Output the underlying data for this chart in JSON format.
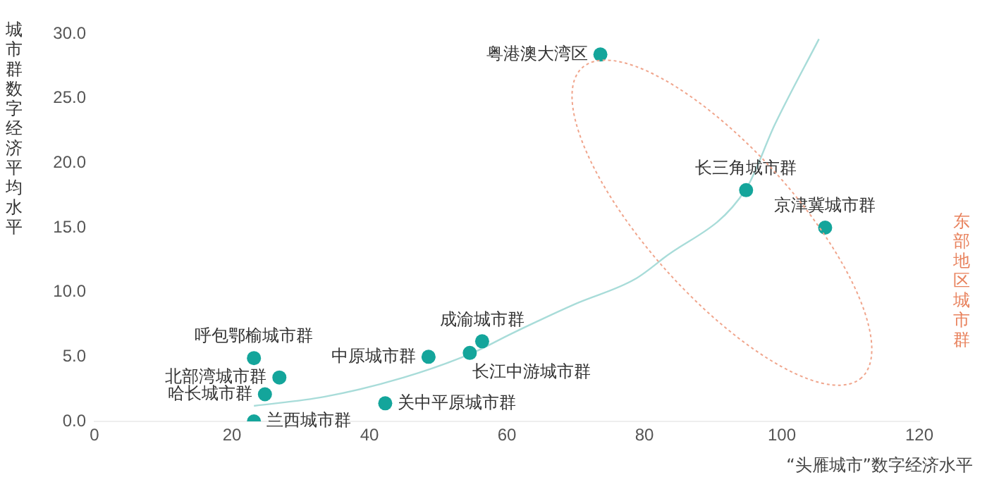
{
  "chart_data": {
    "type": "scatter",
    "xlabel": "“头雁城市”数字经济水平",
    "ylabel": "城市群数字经济平均水平",
    "series": [
      {
        "color": "#14a59b",
        "x": [
          73.6,
          94.8,
          106.3,
          23.2,
          26.9,
          24.8,
          23.2,
          42.3,
          48.6,
          54.6,
          56.4
        ],
        "values": [
          28.4,
          17.9,
          15.0,
          4.9,
          3.4,
          2.1,
          0.0,
          1.4,
          5.0,
          5.3,
          6.2
        ],
        "marker": "circle"
      },
      {
        "type": "line",
        "color": "#a8dcd9",
        "x": [
          23.2,
          33.4,
          45,
          55,
          60.7,
          70,
          78.6,
          82.7,
          94.8,
          99,
          105.4
        ],
        "values": [
          1.2,
          1.9,
          3.4,
          5.3,
          6.8,
          9.1,
          11.0,
          12.6,
          18.0,
          23.0,
          29.6
        ],
        "marker": "none"
      }
    ],
    "annotations": [
      {
        "text": "粤港澳大湾区",
        "x": 73.6,
        "y": 28.4
      },
      {
        "text": "长三角城市群",
        "x": 94.8,
        "y": 17.9
      },
      {
        "text": "京津冀城市群",
        "x": 106.3,
        "y": 15.0
      },
      {
        "text": "呼包鄂榆城市群",
        "x": 23.2,
        "y": 4.9
      },
      {
        "text": "北部湾城市群",
        "x": 26.9,
        "y": 3.4
      },
      {
        "text": "哈长城市群",
        "x": 24.8,
        "y": 2.1
      },
      {
        "text": "兰西城市群",
        "x": 23.2,
        "y": 0.0
      },
      {
        "text": "关中平原城市群",
        "x": 42.3,
        "y": 1.4
      },
      {
        "text": "中原城市群",
        "x": 48.6,
        "y": 5.0
      },
      {
        "text": "长江中游城市群",
        "x": 54.6,
        "y": 5.3
      },
      {
        "text": "成渝城市群",
        "x": 56.4,
        "y": 6.2
      },
      "东部地区城市群"
    ],
    "xlim": [
      0,
      120
    ],
    "xticks": [
      0,
      20,
      40,
      60,
      80,
      100,
      120
    ],
    "ylim": [
      0,
      30
    ],
    "yticks": [
      {
        "value": 0,
        "label": "0.0"
      },
      {
        "value": 5,
        "label": "5.0"
      },
      {
        "value": 10,
        "label": "10.0"
      },
      {
        "value": 15,
        "label": "15.0"
      },
      {
        "value": 20,
        "label": "20.0"
      },
      {
        "value": 25,
        "label": "25.0"
      },
      {
        "value": 30,
        "label": "30.0"
      }
    ],
    "grid": false,
    "legend": false
  }
}
